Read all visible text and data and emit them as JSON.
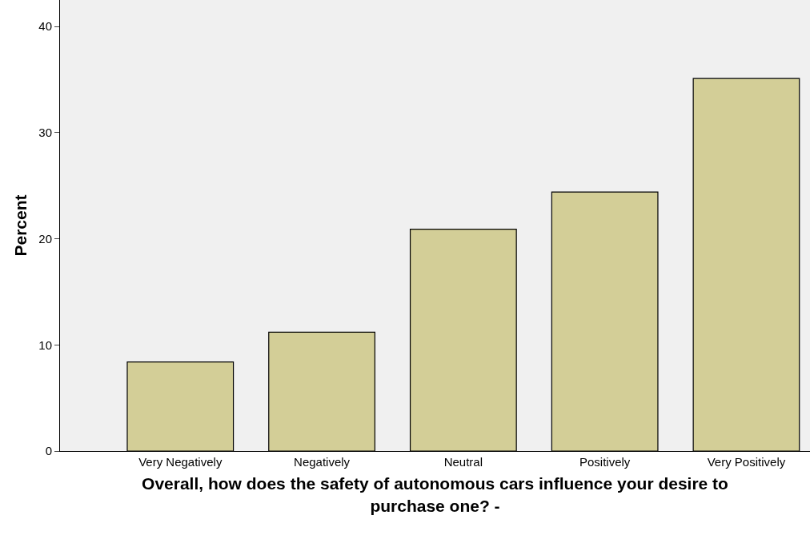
{
  "chart_data": {
    "type": "bar",
    "categories": [
      "Very Negatively",
      "Negatively",
      "Neutral",
      "Positively",
      "Very Positively"
    ],
    "values": [
      8.4,
      11.2,
      20.9,
      24.4,
      35.1
    ],
    "color": "#d3ce97",
    "xlabel": "Overall, how does the safety of autonomous cars influence your desire to\npurchase one? -",
    "ylabel": "Percent",
    "ylim": [
      0,
      42.5
    ],
    "yticks": [
      0,
      10,
      20,
      30,
      40
    ],
    "grid": false,
    "legend": false
  }
}
